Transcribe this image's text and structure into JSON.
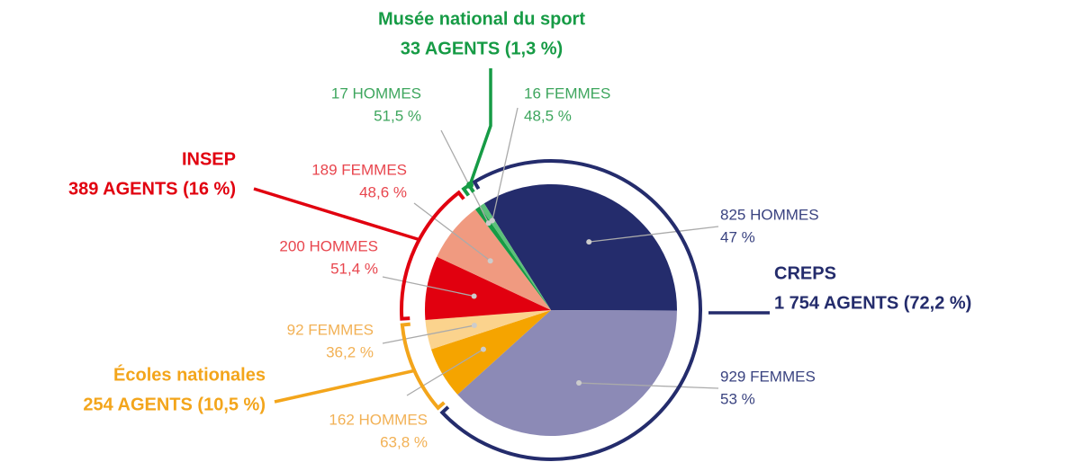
{
  "chart_data": {
    "type": "pie",
    "groups": [
      {
        "name": "CREPS",
        "value": 1754,
        "value_label": "1 754 AGENTS (72,2 %)",
        "color": "#242c6c",
        "label_color": "#3a4380",
        "slices": [
          {
            "value": 825,
            "value_label": "825 HOMMES",
            "share": 47,
            "share_label": "47 %",
            "color": "#242c6c"
          },
          {
            "value": 929,
            "value_label": "929 FEMMES",
            "share": 53,
            "share_label": "53 %",
            "color": "#8c8ab6"
          }
        ]
      },
      {
        "name": "Écoles nationales",
        "value": 254,
        "value_label": "254 AGENTS (10,5 %)",
        "color": "#f3a51b",
        "label_color": "#f2b155",
        "slices": [
          {
            "value": 162,
            "value_label": "162 HOMMES",
            "share": 63.8,
            "share_label": "63,8 %",
            "color": "#f5a400"
          },
          {
            "value": 92,
            "value_label": "92 FEMMES",
            "share": 36.2,
            "share_label": "36,2 %",
            "color": "#fbd38d"
          }
        ]
      },
      {
        "name": "INSEP",
        "value": 389,
        "value_label": "389 AGENTS (16 %)",
        "color": "#e1000f",
        "label_color": "#e8464e",
        "slices": [
          {
            "value": 200,
            "value_label": "200 HOMMES",
            "share": 51.4,
            "share_label": "51,4 %",
            "color": "#e1000f"
          },
          {
            "value": 189,
            "value_label": "189 FEMMES",
            "share": 48.6,
            "share_label": "48,6 %",
            "color": "#f09a80"
          }
        ]
      },
      {
        "name": "Musée national du sport",
        "value": 33,
        "value_label": "33 AGENTS (1,3 %)",
        "color": "#169b45",
        "label_color": "#3ea65e",
        "slices": [
          {
            "value": 17,
            "value_label": "17 HOMMES",
            "share": 51.5,
            "share_label": "51,5 %",
            "color": "#169b45"
          },
          {
            "value": 16,
            "value_label": "16 FEMMES",
            "share": 48.5,
            "share_label": "48,5 %",
            "color": "#5cc07a"
          }
        ]
      }
    ]
  }
}
